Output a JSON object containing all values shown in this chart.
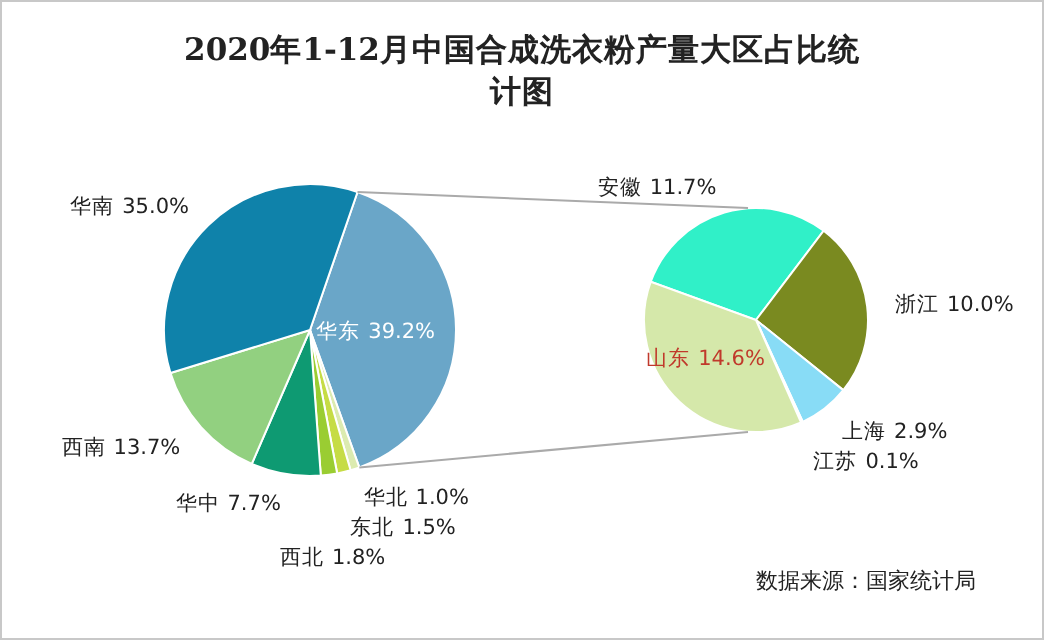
{
  "chart_data": [
    {
      "type": "pie",
      "title": "2020年1-12月中国合成洗衣粉产量大区占比统计图",
      "categories": [
        "华东",
        "华北",
        "东北",
        "西北",
        "华中",
        "西南",
        "华南"
      ],
      "values": [
        39.2,
        1.0,
        1.5,
        1.8,
        7.7,
        13.7,
        35.0
      ],
      "value_labels": [
        "39.2%",
        "1.0%",
        "1.5%",
        "1.8%",
        "7.7%",
        "13.7%",
        "35.0%"
      ],
      "colors": [
        "#6aa6c8",
        "#dcebb0",
        "#c6dc45",
        "#9acd32",
        "#0e9a72",
        "#92d080",
        "#0f82aa"
      ],
      "legend": false
    },
    {
      "type": "pie",
      "categories": [
        "安徽",
        "浙江",
        "上海",
        "江苏",
        "山东"
      ],
      "values": [
        11.7,
        10.0,
        2.9,
        0.1,
        14.6
      ],
      "value_labels": [
        "11.7%",
        "10.0%",
        "2.9%",
        "0.1%",
        "14.6%"
      ],
      "colors": [
        "#30f0c8",
        "#7a8a20",
        "#88dcf6",
        "#3a8fd0",
        "#d5e8aa"
      ],
      "legend": false,
      "annotations": [
        "数据来源：国家统计局"
      ]
    }
  ]
}
